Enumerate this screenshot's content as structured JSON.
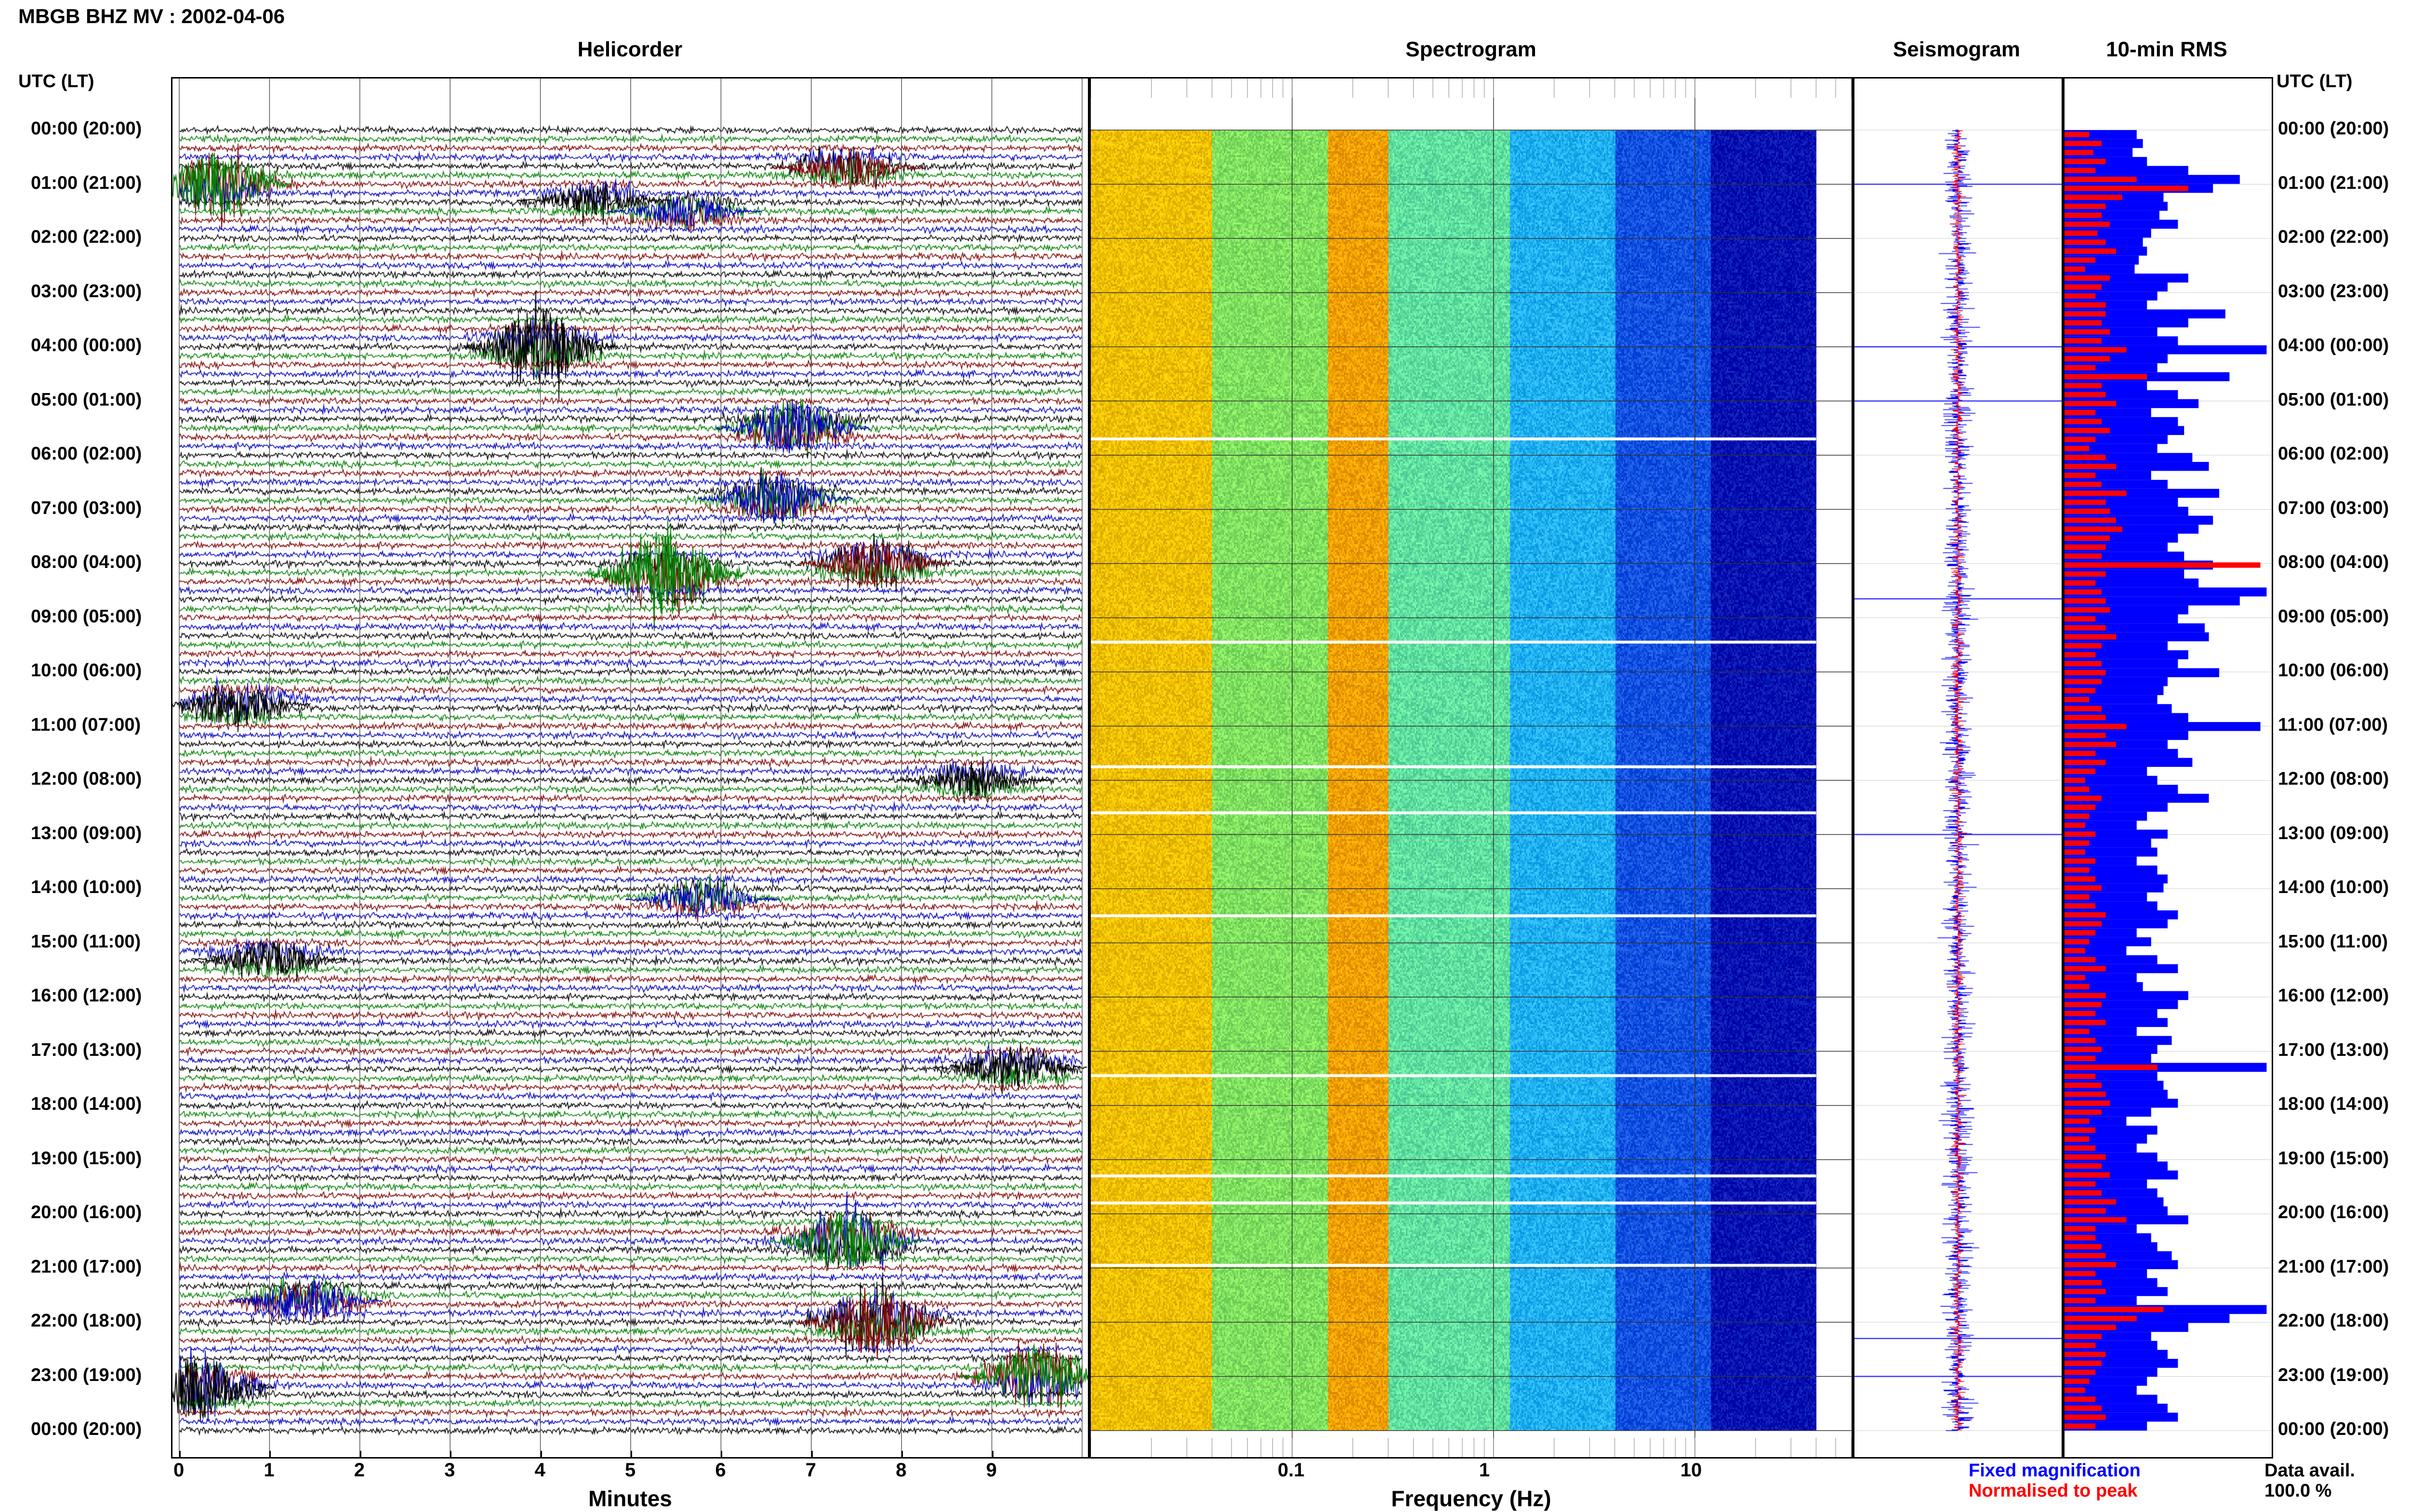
{
  "header": {
    "title": "MBGB BHZ MV : 2002-04-06"
  },
  "panels": {
    "helicorder": "Helicorder",
    "spectrogram": "Spectrogram",
    "seismogram": "Seismogram",
    "rms": "10-min RMS"
  },
  "time_axis_label": "UTC (LT)",
  "hours": [
    "00:00 (20:00)",
    "01:00 (21:00)",
    "02:00 (22:00)",
    "03:00 (23:00)",
    "04:00 (00:00)",
    "05:00 (01:00)",
    "06:00 (02:00)",
    "07:00 (03:00)",
    "08:00 (04:00)",
    "09:00 (05:00)",
    "10:00 (06:00)",
    "11:00 (07:00)",
    "12:00 (08:00)",
    "13:00 (09:00)",
    "14:00 (10:00)",
    "15:00 (11:00)",
    "16:00 (12:00)",
    "17:00 (13:00)",
    "18:00 (14:00)",
    "19:00 (15:00)",
    "20:00 (16:00)",
    "21:00 (17:00)",
    "22:00 (18:00)",
    "23:00 (19:00)",
    "00:00 (20:00)"
  ],
  "minutes_axis": {
    "label": "Minutes",
    "ticks": [
      "0",
      "1",
      "2",
      "3",
      "4",
      "5",
      "6",
      "7",
      "8",
      "9"
    ]
  },
  "frequency_axis": {
    "label": "Frequency (Hz)",
    "ticks": [
      "0.1",
      "1",
      "10"
    ]
  },
  "legend": {
    "fixed": "Fixed magnification",
    "normalised": "Normalised to peak",
    "fixed_color": "#0000ff",
    "normalised_color": "#ff0000"
  },
  "data_avail": {
    "label": "Data avail.",
    "value": "100.0 %"
  },
  "colors": {
    "black": "#000000",
    "blue": "#0000c0",
    "green": "#008000",
    "darkred": "#800000",
    "rms_blue": "#0000ff",
    "rms_red": "#ff0000"
  },
  "chart_data": [
    {
      "type": "line",
      "name": "Helicorder",
      "xlabel": "Minutes",
      "xlim": [
        0,
        10
      ],
      "rows_per_hour": 6,
      "row_colors": [
        "#000000",
        "#008000",
        "#800000",
        "#0000c0"
      ],
      "events": [
        {
          "hour": 1.0,
          "minute": 0.4,
          "amp": 3.0,
          "color": "green"
        },
        {
          "hour": 0.7,
          "minute": 7.4,
          "amp": 1.8,
          "color": "darkred"
        },
        {
          "hour": 1.3,
          "minute": 4.6,
          "amp": 1.4,
          "color": "black"
        },
        {
          "hour": 1.5,
          "minute": 5.6,
          "amp": 1.5,
          "color": "blue"
        },
        {
          "hour": 4.0,
          "minute": 4.0,
          "amp": 3.5,
          "color": "black"
        },
        {
          "hour": 5.5,
          "minute": 6.8,
          "amp": 2.8,
          "color": "blue"
        },
        {
          "hour": 6.8,
          "minute": 6.6,
          "amp": 2.5,
          "color": "blue"
        },
        {
          "hour": 8.2,
          "minute": 5.4,
          "amp": 4.0,
          "color": "green"
        },
        {
          "hour": 8.0,
          "minute": 7.7,
          "amp": 2.2,
          "color": "darkred"
        },
        {
          "hour": 10.6,
          "minute": 0.6,
          "amp": 2.0,
          "color": "black"
        },
        {
          "hour": 12.0,
          "minute": 8.8,
          "amp": 1.5,
          "color": "black"
        },
        {
          "hour": 14.2,
          "minute": 5.8,
          "amp": 1.5,
          "color": "blue"
        },
        {
          "hour": 15.3,
          "minute": 1.0,
          "amp": 1.6,
          "color": "black"
        },
        {
          "hour": 17.3,
          "minute": 9.2,
          "amp": 1.8,
          "color": "black"
        },
        {
          "hour": 20.5,
          "minute": 7.4,
          "amp": 3.0,
          "color": "green"
        },
        {
          "hour": 22.0,
          "minute": 7.7,
          "amp": 3.5,
          "color": "darkred"
        },
        {
          "hour": 21.6,
          "minute": 1.4,
          "amp": 2.0,
          "color": "blue"
        },
        {
          "hour": 23.2,
          "minute": 0.2,
          "amp": 3.0,
          "color": "black"
        },
        {
          "hour": 23.0,
          "minute": 9.5,
          "amp": 3.0,
          "color": "green"
        }
      ]
    },
    {
      "type": "heatmap",
      "name": "Spectrogram",
      "xlabel": "Frequency (Hz)",
      "xscale": "log",
      "xlim": [
        0.01,
        60
      ],
      "data_end_freq": 40,
      "band_colors": [
        {
          "from": 0.01,
          "to": 0.04,
          "color": "#f0c000"
        },
        {
          "from": 0.04,
          "to": 0.15,
          "color": "#80e060"
        },
        {
          "from": 0.15,
          "to": 0.3,
          "color": "#f0a000"
        },
        {
          "from": 0.3,
          "to": 1.2,
          "color": "#60e0a0"
        },
        {
          "from": 1.2,
          "to": 4,
          "color": "#20b0f0"
        },
        {
          "from": 4,
          "to": 12,
          "color": "#1050e0"
        },
        {
          "from": 12,
          "to": 40,
          "color": "#0010b0"
        }
      ],
      "gaps_hours": [
        5.7,
        9.45,
        11.75,
        12.6,
        14.5,
        17.45,
        19.3,
        19.8,
        20.95
      ]
    },
    {
      "type": "line",
      "name": "Seismogram",
      "spikes_hours": [
        1.0,
        4.0,
        5.0,
        8.65,
        13.0,
        22.3,
        23.0
      ]
    },
    {
      "type": "bar",
      "name": "10-min RMS",
      "fixed_magnification": [
        0.35,
        0.38,
        0.33,
        0.4,
        0.6,
        0.85,
        0.72,
        0.48,
        0.5,
        0.46,
        0.55,
        0.42,
        0.38,
        0.4,
        0.36,
        0.34,
        0.6,
        0.5,
        0.45,
        0.4,
        0.78,
        0.6,
        0.45,
        0.55,
        0.98,
        0.5,
        0.45,
        0.8,
        0.4,
        0.55,
        0.65,
        0.42,
        0.55,
        0.58,
        0.5,
        0.45,
        0.62,
        0.7,
        0.42,
        0.5,
        0.75,
        0.55,
        0.6,
        0.72,
        0.65,
        0.55,
        0.5,
        0.58,
        0.72,
        0.58,
        0.65,
        0.98,
        0.85,
        0.6,
        0.55,
        0.68,
        0.7,
        0.5,
        0.6,
        0.55,
        0.75,
        0.5,
        0.48,
        0.45,
        0.52,
        0.6,
        0.95,
        0.6,
        0.5,
        0.55,
        0.62,
        0.4,
        0.45,
        0.55,
        0.7,
        0.5,
        0.4,
        0.35,
        0.5,
        0.42,
        0.45,
        0.35,
        0.45,
        0.5,
        0.48,
        0.4,
        0.45,
        0.55,
        0.5,
        0.35,
        0.42,
        0.3,
        0.45,
        0.55,
        0.35,
        0.38,
        0.6,
        0.55,
        0.45,
        0.5,
        0.35,
        0.52,
        0.45,
        0.42,
        0.98,
        0.45,
        0.48,
        0.5,
        0.55,
        0.42,
        0.3,
        0.45,
        0.4,
        0.35,
        0.45,
        0.5,
        0.55,
        0.4,
        0.45,
        0.48,
        0.5,
        0.6,
        0.35,
        0.42,
        0.45,
        0.52,
        0.55,
        0.4,
        0.45,
        0.5,
        0.35,
        0.98,
        0.8,
        0.6,
        0.42,
        0.45,
        0.5,
        0.55,
        0.45,
        0.4,
        0.35,
        0.45,
        0.5,
        0.55,
        0.4
      ],
      "normalised_to_peak": [
        0.12,
        0.18,
        0.14,
        0.2,
        0.15,
        0.35,
        0.6,
        0.28,
        0.2,
        0.18,
        0.22,
        0.16,
        0.2,
        0.25,
        0.15,
        0.1,
        0.22,
        0.18,
        0.15,
        0.2,
        0.2,
        0.18,
        0.22,
        0.18,
        0.3,
        0.22,
        0.15,
        0.4,
        0.18,
        0.2,
        0.25,
        0.15,
        0.18,
        0.22,
        0.15,
        0.12,
        0.2,
        0.25,
        0.15,
        0.18,
        0.3,
        0.2,
        0.22,
        0.25,
        0.28,
        0.22,
        0.2,
        0.18,
        0.95,
        0.2,
        0.15,
        0.18,
        0.2,
        0.22,
        0.15,
        0.2,
        0.25,
        0.18,
        0.15,
        0.18,
        0.2,
        0.18,
        0.15,
        0.12,
        0.18,
        0.2,
        0.3,
        0.2,
        0.25,
        0.15,
        0.2,
        0.15,
        0.1,
        0.12,
        0.18,
        0.15,
        0.12,
        0.1,
        0.15,
        0.12,
        0.1,
        0.15,
        0.12,
        0.15,
        0.18,
        0.12,
        0.15,
        0.2,
        0.18,
        0.15,
        0.12,
        0.1,
        0.15,
        0.2,
        0.1,
        0.12,
        0.2,
        0.18,
        0.15,
        0.2,
        0.12,
        0.15,
        0.18,
        0.15,
        0.45,
        0.15,
        0.18,
        0.2,
        0.22,
        0.18,
        0.12,
        0.15,
        0.12,
        0.15,
        0.2,
        0.18,
        0.22,
        0.15,
        0.18,
        0.25,
        0.2,
        0.3,
        0.15,
        0.15,
        0.18,
        0.2,
        0.25,
        0.15,
        0.18,
        0.2,
        0.15,
        0.48,
        0.35,
        0.25,
        0.18,
        0.15,
        0.2,
        0.18,
        0.15,
        0.12,
        0.1,
        0.15,
        0.18,
        0.2,
        0.15
      ]
    }
  ]
}
